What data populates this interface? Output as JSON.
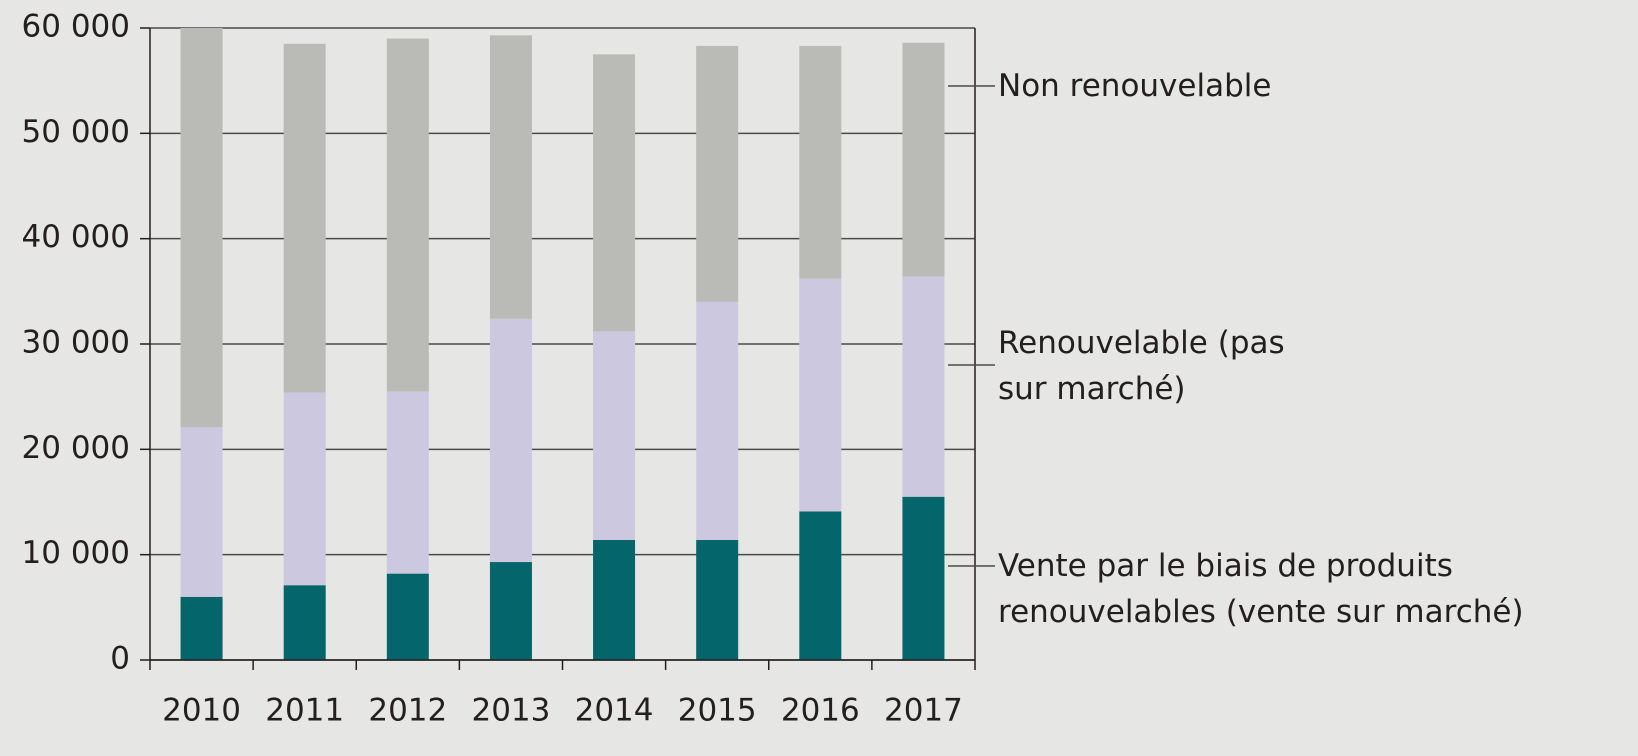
{
  "chart_data": {
    "type": "bar",
    "stacked": true,
    "categories": [
      "2010",
      "2011",
      "2012",
      "2013",
      "2014",
      "2015",
      "2016",
      "2017"
    ],
    "series": [
      {
        "name": "Vente par le biais de produits renouvelables (vente sur marché)",
        "color": "#04666a",
        "values": [
          6000,
          7100,
          8200,
          9300,
          11400,
          11400,
          14100,
          15500
        ]
      },
      {
        "name": "Renouvelable (pas sur marché)",
        "color": "#cbc8df",
        "values": [
          16100,
          18300,
          17300,
          23100,
          19800,
          22600,
          22100,
          20900
        ]
      },
      {
        "name": "Non renouvelable",
        "color": "#babab6",
        "values": [
          37900,
          33100,
          33500,
          26900,
          26300,
          24300,
          22100,
          22200
        ]
      }
    ],
    "ylim": [
      0,
      60000
    ],
    "yticks": [
      0,
      {
        "value": 10000,
        "label": "10 000"
      },
      {
        "value": 20000,
        "label": "20 000"
      },
      {
        "value": 30000,
        "label": "30 000"
      },
      {
        "value": 40000,
        "label": "40 000"
      },
      {
        "value": 50000,
        "label": "50 000"
      },
      {
        "value": 60000,
        "label": "60 000"
      }
    ],
    "grid": true
  }
}
